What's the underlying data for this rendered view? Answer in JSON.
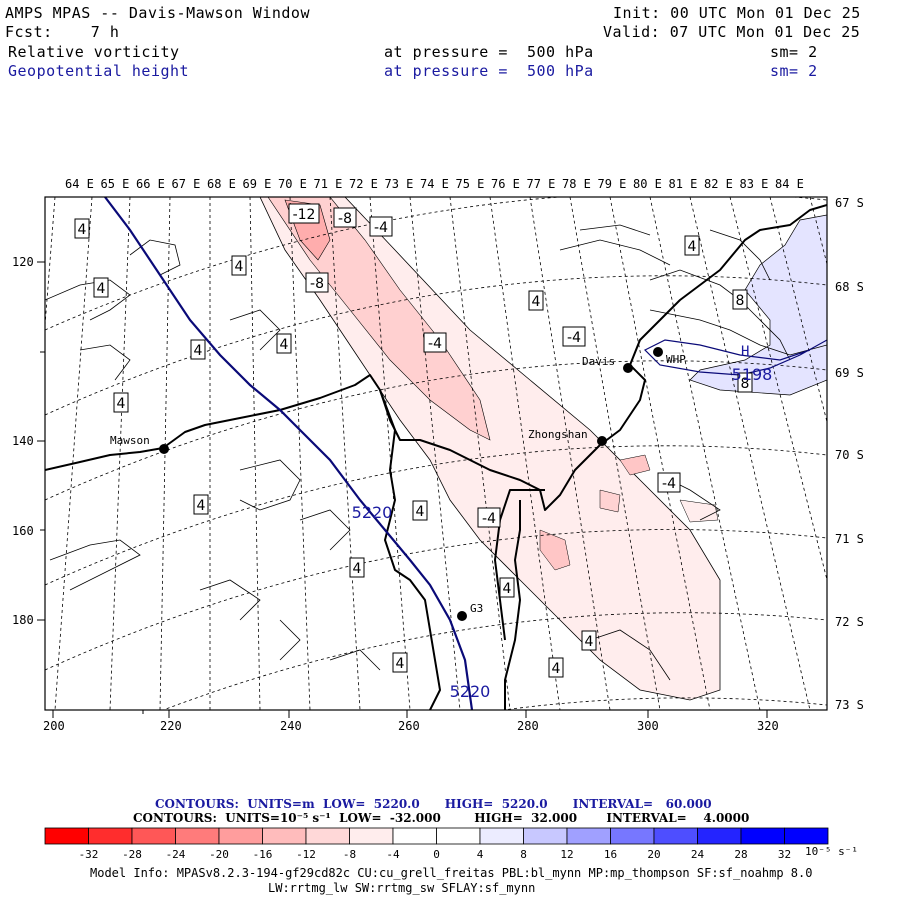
{
  "header": {
    "title": "AMPS MPAS -- Davis-Mawson Window",
    "fcst": "Fcst:    7 h",
    "init": "Init: 00 UTC Mon 01 Dec 25",
    "valid": "Valid: 07 UTC Mon 01 Dec 25",
    "field1": {
      "name": "Relative vorticity",
      "level": "at pressure =  500 hPa",
      "sm": "sm= 2"
    },
    "field2": {
      "name": "Geopotential height",
      "level": "at pressure =  500 hPa",
      "sm": "sm= 2"
    }
  },
  "map": {
    "top_lon_labels": [
      "64 E",
      "65 E",
      "66 E",
      "67 E",
      "68 E",
      "69 E",
      "70 E",
      "71 E",
      "72 E",
      "73 E",
      "74 E",
      "75 E",
      "76 E",
      "77 E",
      "78 E",
      "79 E",
      "80 E",
      "81 E",
      "82 E",
      "83 E",
      "84 E"
    ],
    "right_lat_labels": [
      "67 S",
      "68 S",
      "69 S",
      "70 S",
      "71 S",
      "72 S",
      "73 S"
    ],
    "left_y_labels": [
      "120",
      "140",
      "160",
      "180"
    ],
    "bottom_x_labels": [
      "200",
      "220",
      "240",
      "260",
      "280",
      "300",
      "320"
    ],
    "stations": [
      {
        "name": "Mawson"
      },
      {
        "name": "Davis"
      },
      {
        "name": "WHP"
      },
      {
        "name": "Zhongshan"
      },
      {
        "name": "G3"
      }
    ],
    "vorticity_labels": [
      "-12",
      "-8",
      "-4",
      "-8",
      "-4",
      "4",
      "4",
      "4",
      "4",
      "4",
      "4",
      "4",
      "4",
      "4",
      "4",
      "4",
      "4",
      "4",
      "-4",
      "-4",
      "-4",
      "4",
      "4",
      "8",
      "8"
    ],
    "height_labels": [
      "5220",
      "5220",
      "5198"
    ],
    "high_marker": "H",
    "colors": {
      "coast": "#000000",
      "height_contour": "#0a0a78",
      "negative": "#e8272a",
      "positive": "#2525e8"
    }
  },
  "legend": {
    "line1": "CONTOURS:  UNITS=m  LOW=  5220.0      HIGH=  5220.0      INTERVAL=   60.000",
    "line2": "CONTOURS:  UNITS=10⁻⁵ s⁻¹  LOW=  -32.000        HIGH=  32.000       INTERVAL=    4.0000",
    "colorbar_ticks": [
      "-32",
      "-28",
      "-24",
      "-20",
      "-16",
      "-12",
      "-8",
      "-4",
      "0",
      "4",
      "8",
      "12",
      "16",
      "20",
      "24",
      "28",
      "32"
    ],
    "colorbar_units": "10⁻⁵ s⁻¹",
    "colorbar_colors": [
      "#ff0000",
      "#ff2d2d",
      "#ff5757",
      "#ff7b7b",
      "#ff9d9d",
      "#ffbcbc",
      "#ffd8d8",
      "#ffeded",
      "#ffffff",
      "#ffffff",
      "#ececff",
      "#c8c8ff",
      "#a0a0ff",
      "#7777ff",
      "#4e4eff",
      "#2424ff",
      "#0000ff"
    ]
  },
  "footer": {
    "line1": "Model Info: MPASv8.2.3-194-gf29cd82c CU:cu_grell_freitas PBL:bl_mynn MP:mp_thompson SF:sf_noahmp 8.0",
    "line2": "LW:rrtmg_lw SW:rrtmg_sw SFLAY:sf_mynn"
  }
}
